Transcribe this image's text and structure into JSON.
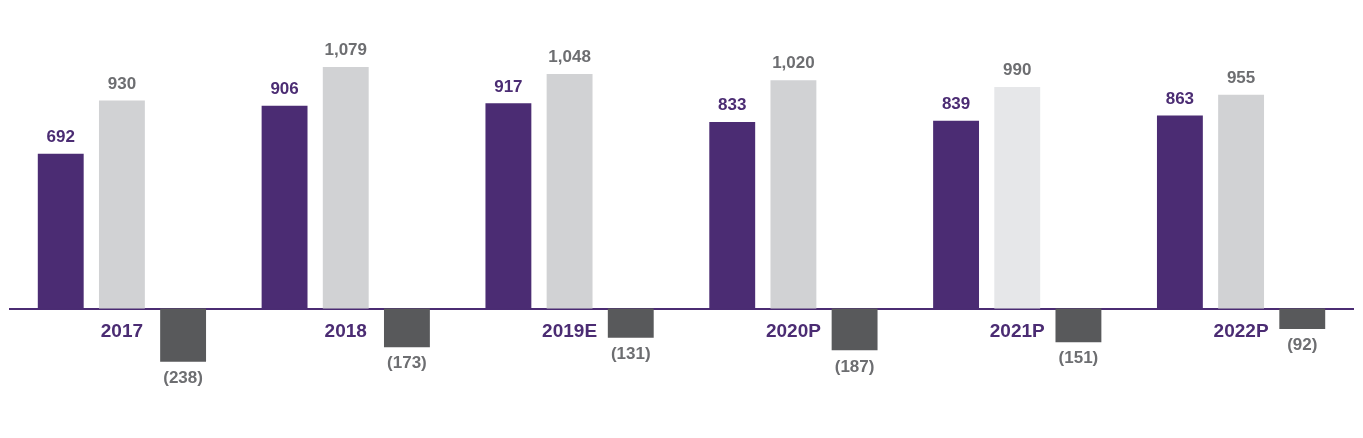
{
  "chart_data": {
    "type": "bar",
    "categories": [
      "2017",
      "2018",
      "2019E",
      "2020P",
      "2021P",
      "2022P"
    ],
    "series": [
      {
        "color": "#4b2c73",
        "values": [
          692,
          906,
          917,
          833,
          839,
          863
        ],
        "value_labels": [
          "692",
          "906",
          "917",
          "833",
          "839",
          "863"
        ]
      },
      {
        "color": "#d1d2d4",
        "colors": [
          "#d1d2d4",
          "#d1d2d4",
          "#d1d2d4",
          "#d1d2d4",
          "#e6e7e9",
          "#d1d2d4"
        ],
        "values": [
          930,
          1079,
          1048,
          1020,
          990,
          955
        ],
        "value_labels": [
          "930",
          "1,079",
          "1,048",
          "1,020",
          "990",
          "955"
        ]
      },
      {
        "color": "#58595b",
        "values": [
          -238,
          -173,
          -131,
          -187,
          -151,
          -92
        ],
        "value_labels": [
          "(238)",
          "(173)",
          "(131)",
          "(187)",
          "(151)",
          "(92)"
        ]
      }
    ],
    "tick_labels": "x",
    "grid": false,
    "legend": false
  }
}
